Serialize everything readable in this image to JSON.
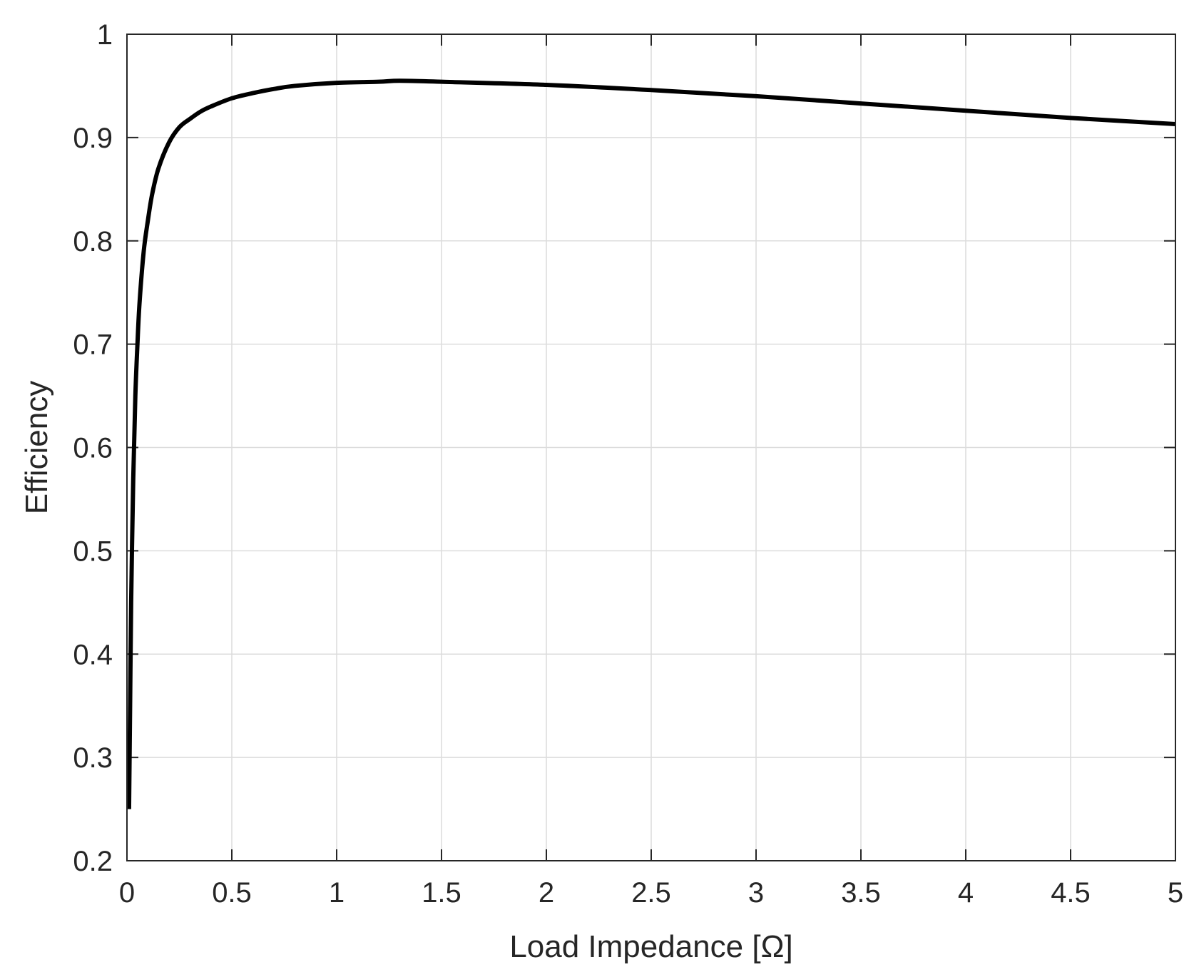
{
  "chart_data": {
    "type": "line",
    "title": "",
    "xlabel": "Load Impedance [Ω]",
    "ylabel": "Efficiency",
    "xlim": [
      0,
      5
    ],
    "ylim": [
      0.2,
      1
    ],
    "grid": true,
    "x_ticks": [
      0,
      0.5,
      1,
      1.5,
      2,
      2.5,
      3,
      3.5,
      4,
      4.5,
      5
    ],
    "x_tick_labels": [
      "0",
      "0.5",
      "1",
      "1.5",
      "2",
      "2.5",
      "3",
      "3.5",
      "4",
      "4.5",
      "5"
    ],
    "y_ticks": [
      0.2,
      0.3,
      0.4,
      0.5,
      0.6,
      0.7,
      0.8,
      0.9,
      1
    ],
    "y_tick_labels": [
      "0.2",
      "0.3",
      "0.4",
      "0.5",
      "0.6",
      "0.7",
      "0.8",
      "0.9",
      "1"
    ],
    "line_color": "#000000",
    "series": [
      {
        "x": [
          0.01,
          0.015,
          0.02,
          0.03,
          0.04,
          0.05,
          0.06,
          0.08,
          0.1,
          0.12,
          0.15,
          0.2,
          0.25,
          0.3,
          0.35,
          0.4,
          0.5,
          0.6,
          0.7,
          0.8,
          1.0,
          1.2,
          1.3,
          1.5,
          2.0,
          2.5,
          3.0,
          3.5,
          4.0,
          4.5,
          5.0
        ],
        "y": [
          0.25,
          0.35,
          0.45,
          0.57,
          0.65,
          0.7,
          0.74,
          0.79,
          0.82,
          0.845,
          0.87,
          0.895,
          0.91,
          0.918,
          0.925,
          0.93,
          0.938,
          0.943,
          0.947,
          0.95,
          0.953,
          0.954,
          0.955,
          0.954,
          0.951,
          0.946,
          0.94,
          0.933,
          0.926,
          0.919,
          0.913
        ]
      }
    ]
  }
}
